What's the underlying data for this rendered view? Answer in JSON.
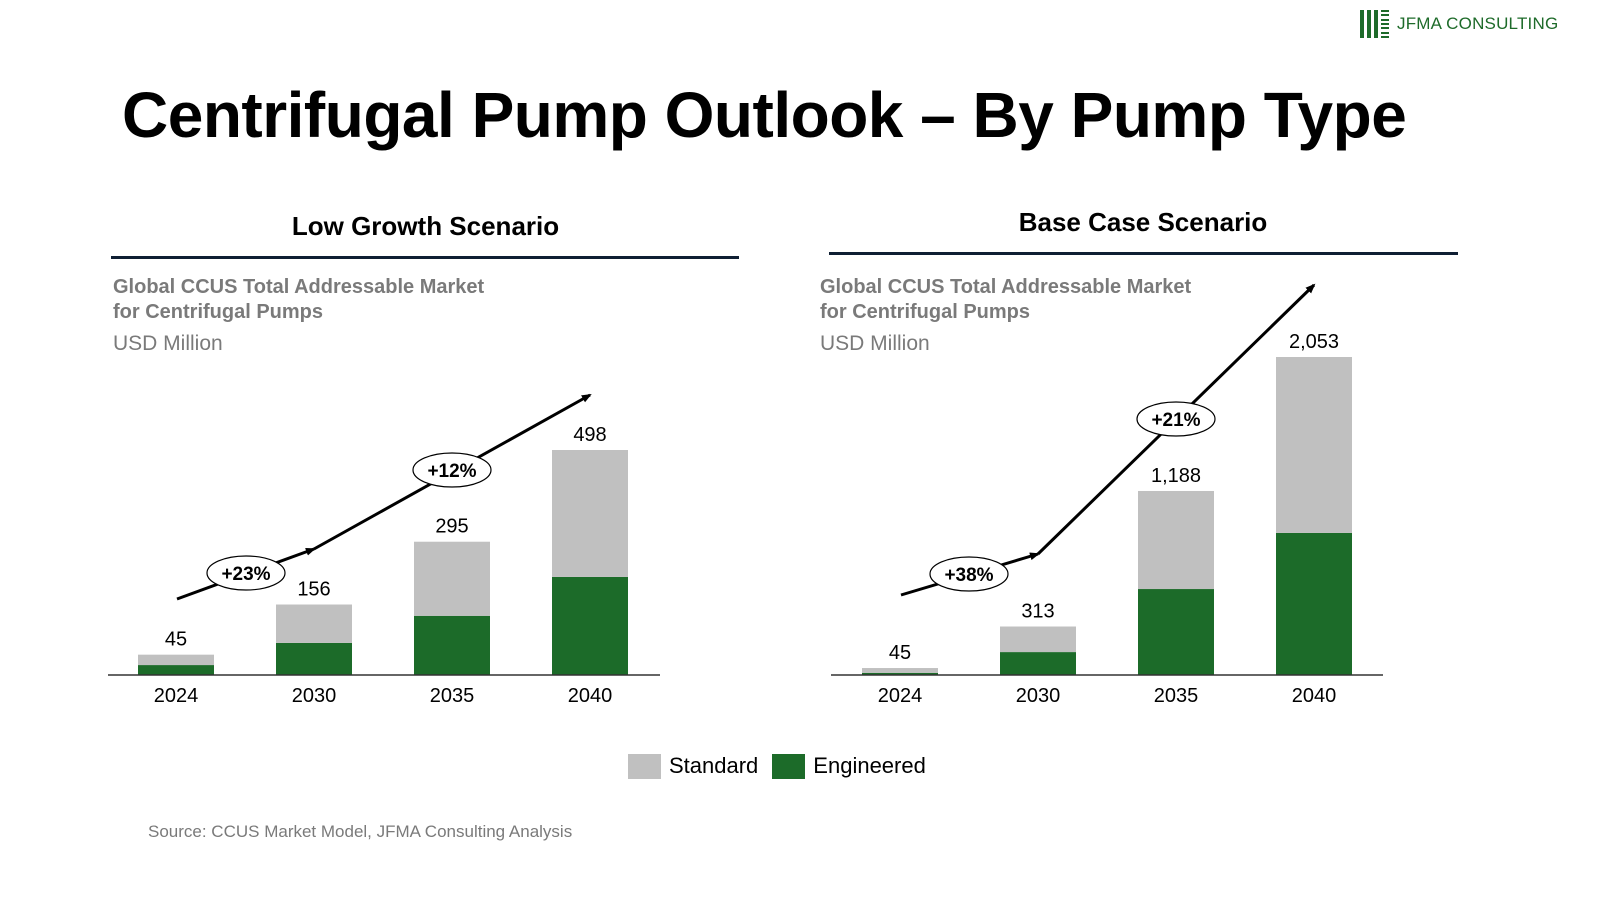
{
  "brand": {
    "name": "JFMA CONSULTING",
    "color": "#1e6b2a"
  },
  "title": "Centrifugal Pump Outlook – By Pump Type",
  "colors": {
    "standard": "#c0c0c0",
    "engineered": "#1c6b29",
    "rule": "#0f1f33"
  },
  "legend": [
    {
      "label": "Standard",
      "color": "#c0c0c0"
    },
    {
      "label": "Engineered",
      "color": "#1c6b29"
    }
  ],
  "source": "Source: CCUS Market Model, JFMA Consulting Analysis",
  "chart_data": [
    {
      "type": "bar",
      "stacked": true,
      "scenario": "Low Growth Scenario",
      "title_line1": "Global CCUS Total Addressable Market",
      "title_line2": "for Centrifugal Pumps",
      "ylabel": "USD Million",
      "categories": [
        "2024",
        "2030",
        "2035",
        "2040"
      ],
      "totals": [
        45,
        156,
        295,
        498
      ],
      "total_labels": [
        "45",
        "156",
        "295",
        "498"
      ],
      "series": [
        {
          "name": "Engineered",
          "values": [
            22,
            71,
            131,
            217
          ]
        },
        {
          "name": "Standard",
          "values": [
            23,
            85,
            164,
            281
          ]
        }
      ],
      "cagr": [
        {
          "label": "+23%",
          "from": "2024",
          "to": "2030"
        },
        {
          "label": "+12%",
          "from": "2030",
          "to": "2040"
        }
      ],
      "ylim": [
        0,
        498
      ],
      "grid": false
    },
    {
      "type": "bar",
      "stacked": true,
      "scenario": "Base Case Scenario",
      "title_line1": "Global CCUS Total Addressable Market",
      "title_line2": "for Centrifugal Pumps",
      "ylabel": "USD Million",
      "categories": [
        "2024",
        "2030",
        "2035",
        "2040"
      ],
      "totals": [
        45,
        313,
        1188,
        2053
      ],
      "total_labels": [
        "45",
        "313",
        "1,188",
        "2,053"
      ],
      "series": [
        {
          "name": "Engineered",
          "values": [
            14,
            148,
            555,
            917
          ]
        },
        {
          "name": "Standard",
          "values": [
            31,
            165,
            633,
            1136
          ]
        }
      ],
      "cagr": [
        {
          "label": "+38%",
          "from": "2024",
          "to": "2030"
        },
        {
          "label": "+21%",
          "from": "2030",
          "to": "2040"
        }
      ],
      "ylim": [
        0,
        2053
      ],
      "grid": false
    }
  ]
}
